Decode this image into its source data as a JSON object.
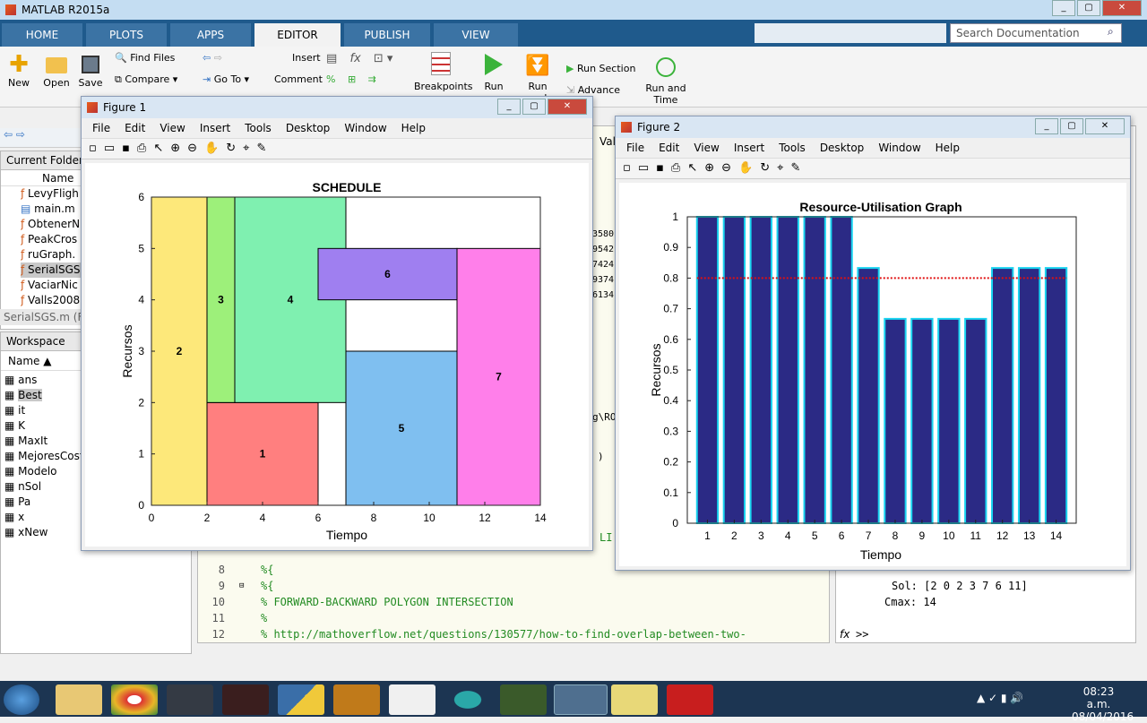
{
  "app": {
    "title": "MATLAB R2015a"
  },
  "tabs": [
    {
      "label": "HOME",
      "active": false
    },
    {
      "label": "PLOTS",
      "active": false
    },
    {
      "label": "APPS",
      "active": false
    },
    {
      "label": "EDITOR",
      "active": true
    },
    {
      "label": "PUBLISH",
      "active": false
    },
    {
      "label": "VIEW",
      "active": false
    }
  ],
  "search": {
    "placeholder": "Search Documentation"
  },
  "ribbon": {
    "new": "New",
    "open": "Open",
    "save": "Save",
    "find_files": "Find Files",
    "compare": "Compare",
    "go_to": "Go To",
    "insert": "Insert",
    "comment": "Comment",
    "fx": "fx",
    "breakpoints": "Breakpoints",
    "run": "Run",
    "run_and": "Run and",
    "advance": "Advance",
    "run_section": "Run Section",
    "run_and_time_1": "Run and",
    "run_and_time_2": "Time"
  },
  "left": {
    "current_folder": "Current Folder",
    "name_col": "Name",
    "files": [
      "LevyFligh",
      "main.m",
      "ObtenerN",
      "PeakCros",
      "ruGraph.",
      "SerialSGS",
      "VaciarNic",
      "Valls2008"
    ],
    "selected_file": "SerialSGS.m (Fu",
    "workspace": "Workspace",
    "ws_name_col": "Name",
    "vars": [
      "ans",
      "Best",
      "it",
      "K",
      "MaxIt",
      "MejoresCost",
      "Modelo",
      "nSol",
      "Pa",
      "x",
      "xNew"
    ]
  },
  "editor": {
    "lines": [
      {
        "n": "8",
        "t": "%{"
      },
      {
        "n": "9",
        "t": "%{"
      },
      {
        "n": "10",
        "t": "% FORWARD-BACKWARD POLYGON INTERSECTION"
      },
      {
        "n": "11",
        "t": "%"
      },
      {
        "n": "12",
        "t": "% http://mathoverflow.net/questions/130577/how-to-find-overlap-between-two-"
      }
    ],
    "partial_path": "g\\RO",
    "partial_vals": [
      "3580",
      "9542",
      "7424",
      "9374",
      "6134"
    ],
    "partial_li": "LI",
    "partial_paren": ")",
    "partial_vall": "Vall"
  },
  "command": {
    "sol": "Sol: [2 0 2 3 7 6 11]",
    "cmax": "Cmax: 14",
    "prompt": ">>",
    "fx": "fx"
  },
  "figure1": {
    "title": "Figure 1",
    "menu": [
      "File",
      "Edit",
      "View",
      "Insert",
      "Tools",
      "Desktop",
      "Window",
      "Help"
    ]
  },
  "figure2": {
    "title": "Figure 2",
    "menu": [
      "File",
      "Edit",
      "View",
      "Insert",
      "Tools",
      "Desktop",
      "Window",
      "Help"
    ]
  },
  "taskbar": {
    "time": "08:23 a.m.",
    "date": "08/04/2016"
  },
  "chart_data": [
    {
      "type": "gantt",
      "title": "SCHEDULE",
      "xlabel": "Tiempo",
      "ylabel": "Recursos",
      "xlim": [
        0,
        14
      ],
      "ylim": [
        0,
        6
      ],
      "xticks": [
        0,
        2,
        4,
        6,
        8,
        10,
        12,
        14
      ],
      "yticks": [
        0,
        1,
        2,
        3,
        4,
        5,
        6
      ],
      "tasks": [
        {
          "label": "2",
          "x0": 0,
          "x1": 2,
          "y0": 0,
          "y1": 6,
          "color": "#fde87a"
        },
        {
          "label": "1",
          "x0": 2,
          "x1": 6,
          "y0": 0,
          "y1": 2,
          "color": "#ff7f7f"
        },
        {
          "label": "3",
          "x0": 2,
          "x1": 3,
          "y0": 2,
          "y1": 6,
          "color": "#9df07a"
        },
        {
          "label": "4",
          "x0": 3,
          "x1": 7,
          "y0": 2,
          "y1": 6,
          "color": "#7ff0b0"
        },
        {
          "label": "6",
          "x0": 6,
          "x1": 11,
          "y0": 4,
          "y1": 5,
          "color": "#9f7ff0"
        },
        {
          "label": "5",
          "x0": 7,
          "x1": 11,
          "y0": 0,
          "y1": 3,
          "color": "#7fbff0"
        },
        {
          "label": "7",
          "x0": 11,
          "x1": 14,
          "y0": 0,
          "y1": 5,
          "color": "#ff7fea"
        }
      ]
    },
    {
      "type": "bar",
      "title": "Resource-Utilisation Graph",
      "xlabel": "Tiempo",
      "ylabel": "Recursos",
      "categories": [
        "1",
        "2",
        "3",
        "4",
        "5",
        "6",
        "7",
        "8",
        "9",
        "10",
        "11",
        "12",
        "13",
        "14"
      ],
      "values": [
        1,
        1,
        1,
        1,
        1,
        1,
        0.833,
        0.667,
        0.667,
        0.667,
        0.667,
        0.833,
        0.833,
        0.833
      ],
      "ylim": [
        0,
        1
      ],
      "yticks": [
        "0",
        "0.1",
        "0.2",
        "0.3",
        "0.4",
        "0.5",
        "0.6",
        "0.7",
        "0.8",
        "0.9",
        "1"
      ],
      "reference_line": 0.8,
      "bar_color": "#2b2a85",
      "edge_color": "#19d4f0",
      "ref_color": "#e01010"
    }
  ]
}
